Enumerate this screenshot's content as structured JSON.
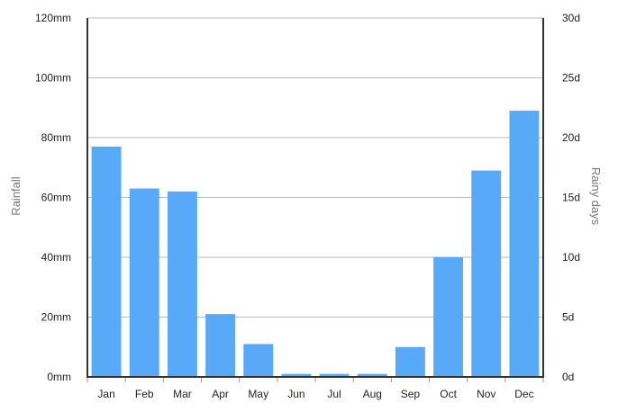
{
  "chart_data": {
    "type": "bar",
    "categories": [
      "Jan",
      "Feb",
      "Mar",
      "Apr",
      "May",
      "Jun",
      "Jul",
      "Aug",
      "Sep",
      "Oct",
      "Nov",
      "Dec"
    ],
    "series": [
      {
        "values": [
          77,
          63,
          62,
          21,
          11,
          1,
          1,
          1,
          10,
          40,
          69,
          89
        ]
      }
    ],
    "title": "",
    "xlabel": "",
    "ylabel": "Rainfall",
    "y2label": "Rainy days",
    "ylim": [
      0,
      120
    ],
    "y2lim": [
      0,
      30
    ],
    "yticks": [
      {
        "value": 0,
        "label": "0mm"
      },
      {
        "value": 20,
        "label": "20mm"
      },
      {
        "value": 40,
        "label": "40mm"
      },
      {
        "value": 60,
        "label": "60mm"
      },
      {
        "value": 80,
        "label": "80mm"
      },
      {
        "value": 100,
        "label": "100mm"
      },
      {
        "value": 120,
        "label": "120mm"
      }
    ],
    "y2ticks": [
      {
        "value": 0,
        "label": "0d"
      },
      {
        "value": 5,
        "label": "5d"
      },
      {
        "value": 10,
        "label": "10d"
      },
      {
        "value": 15,
        "label": "15d"
      },
      {
        "value": 20,
        "label": "20d"
      },
      {
        "value": 25,
        "label": "25d"
      },
      {
        "value": 30,
        "label": "30d"
      }
    ],
    "grid": true,
    "legend": "none",
    "colors": {
      "bar": "#58a9f8",
      "grid": "#bbbbbb",
      "axis": "#333333"
    }
  }
}
